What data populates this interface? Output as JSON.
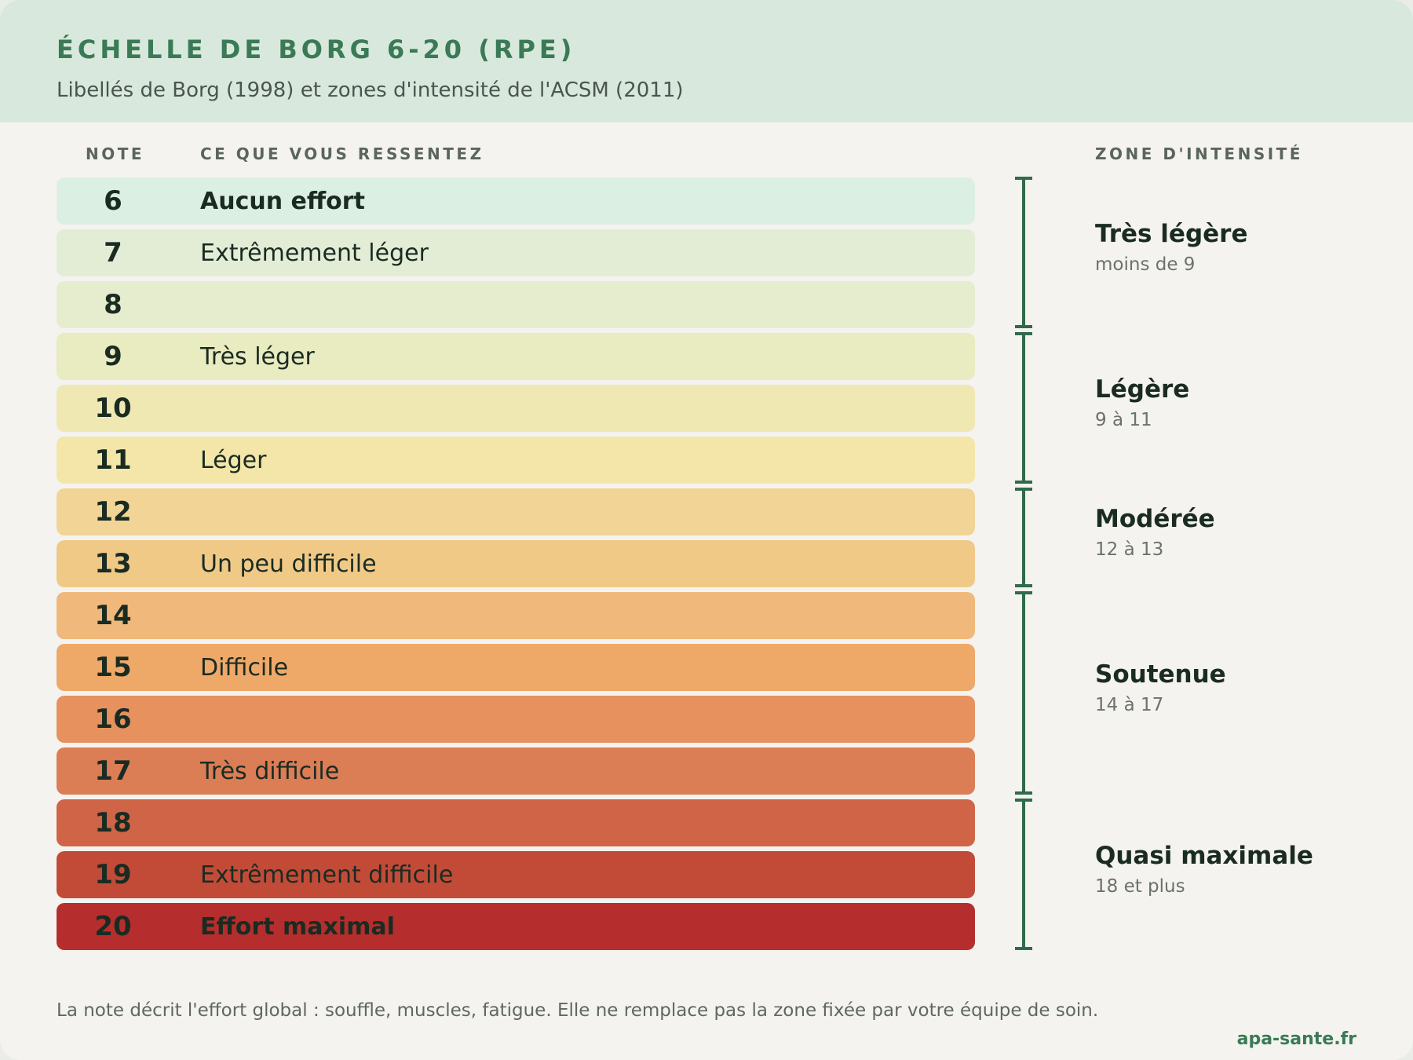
{
  "header": {
    "title": "ÉCHELLE DE BORG 6-20 (RPE)",
    "subtitle": "Libellés de Borg (1998) et zones d'intensité de l'ACSM (2011)"
  },
  "columns": {
    "note": "NOTE",
    "feeling": "CE QUE VOUS RESSENTEZ",
    "zone": "ZONE D'INTENSITÉ"
  },
  "scale": [
    {
      "note": "6",
      "label": "Aucun effort",
      "strong": true,
      "color": "#dcefe3"
    },
    {
      "note": "7",
      "label": "Extrêmement léger",
      "strong": false,
      "color": "#e3edd6"
    },
    {
      "note": "8",
      "label": "",
      "strong": false,
      "color": "#e6ecce"
    },
    {
      "note": "9",
      "label": "Très léger",
      "strong": false,
      "color": "#e9ebc0"
    },
    {
      "note": "10",
      "label": "",
      "strong": false,
      "color": "#efe8b3"
    },
    {
      "note": "11",
      "label": "Léger",
      "strong": false,
      "color": "#f3e6a8"
    },
    {
      "note": "12",
      "label": "",
      "strong": false,
      "color": "#f2d596"
    },
    {
      "note": "13",
      "label": "Un peu difficile",
      "strong": false,
      "color": "#f0c987"
    },
    {
      "note": "14",
      "label": "",
      "strong": false,
      "color": "#f0b87a"
    },
    {
      "note": "15",
      "label": "Difficile",
      "strong": false,
      "color": "#eea868"
    },
    {
      "note": "16",
      "label": "",
      "strong": false,
      "color": "#e6915e"
    },
    {
      "note": "17",
      "label": "Très difficile",
      "strong": false,
      "color": "#db7d55"
    },
    {
      "note": "18",
      "label": "",
      "strong": false,
      "color": "#cf6447"
    },
    {
      "note": "19",
      "label": "Extrêmement difficile",
      "strong": false,
      "color": "#c24b38"
    },
    {
      "note": "20",
      "label": "Effort maximal",
      "strong": true,
      "color": "#b52e2d"
    }
  ],
  "zones": [
    {
      "name": "Très légère",
      "range": "moins de 9",
      "from": 6,
      "to": 8
    },
    {
      "name": "Légère",
      "range": "9 à 11",
      "from": 9,
      "to": 11
    },
    {
      "name": "Modérée",
      "range": "12 à 13",
      "from": 12,
      "to": 13
    },
    {
      "name": "Soutenue",
      "range": "14 à 17",
      "from": 14,
      "to": 17
    },
    {
      "name": "Quasi maximale",
      "range": "18 et plus",
      "from": 18,
      "to": 20
    }
  ],
  "bracket_color": "#2f6b4c",
  "footnote": "La note décrit l'effort global : souffle, muscles, fatigue. Elle ne remplace pas la zone fixée par votre équipe de soin.",
  "site": "apa-sante.fr"
}
